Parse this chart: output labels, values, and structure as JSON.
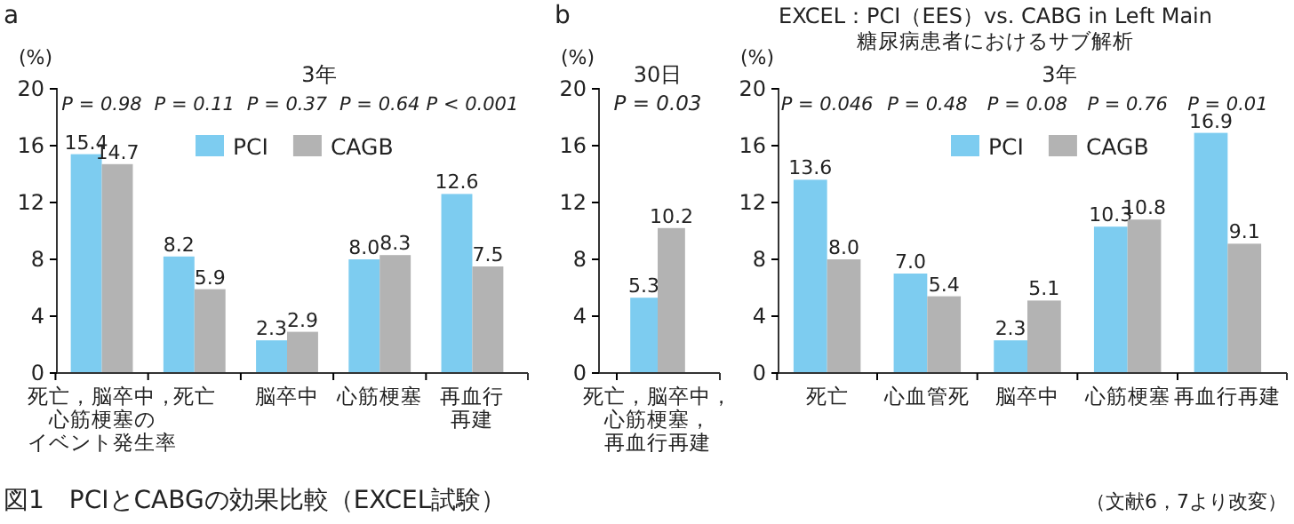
{
  "chart_data": [
    {
      "type": "bar",
      "title": "a",
      "ylabel": "(%)",
      "categories": [
        "死亡，脳卒中，心筋梗塞のイベント発生率",
        "死亡",
        "脳卒中",
        "心筋梗塞",
        "再血行再建"
      ],
      "series": [
        {
          "name": "PCI",
          "color": "#7dccf0",
          "values": [
            15.4,
            8.2,
            2.3,
            8.0,
            12.6
          ],
          "value_labels": [
            "15.4",
            "8.2",
            "2.3",
            "8.0",
            "12.6"
          ]
        },
        {
          "name": "CAGB",
          "color": "#b3b3b3",
          "values": [
            14.7,
            5.9,
            2.9,
            8.3,
            7.5
          ],
          "value_labels": [
            "14.7",
            "5.9",
            "2.9",
            "8.3",
            "7.5"
          ]
        }
      ],
      "ylim": [
        0,
        20
      ],
      "yticks": [
        0,
        4,
        8,
        12,
        16,
        20
      ],
      "legend": "top",
      "grid": false,
      "annotations": [
        "3年",
        "P = 0.98",
        "P = 0.11",
        "P = 0.37",
        "P = 0.64",
        "P < 0.001",
        "図1　PCIとCABGの効果比較（EXCEL試験）"
      ]
    },
    {
      "type": "bar",
      "title": "b",
      "ylabel": "(%)",
      "categories": [
        "死亡，脳卒中，心筋梗塞，再血行再建"
      ],
      "series": [
        {
          "color": "#7dccf0",
          "values": [
            5.3
          ],
          "value_labels": [
            "5.3"
          ]
        },
        {
          "color": "#b3b3b3",
          "values": [
            10.2
          ],
          "value_labels": [
            "10.2"
          ]
        }
      ],
      "ylim": [
        0,
        20
      ],
      "yticks": [
        0,
        4,
        8,
        12,
        16,
        20
      ],
      "legend": false,
      "grid": false,
      "annotations": [
        "30日",
        "P = 0.03"
      ]
    },
    {
      "type": "bar",
      "title": "EXCEL：PCI（EES）vs. CABG in Left Main",
      "subtitle": "糖尿病患者におけるサブ解析",
      "ylabel": "(%)",
      "categories": [
        "死亡",
        "心血管死",
        "脳卒中",
        "心筋梗塞",
        "再血行再建"
      ],
      "series": [
        {
          "name": "PCI",
          "color": "#7dccf0",
          "values": [
            13.6,
            7.0,
            2.3,
            10.3,
            16.9
          ],
          "value_labels": [
            "13.6",
            "7.0",
            "2.3",
            "10.3",
            "16.9"
          ]
        },
        {
          "name": "CAGB",
          "color": "#b3b3b3",
          "values": [
            8.0,
            5.4,
            5.1,
            10.8,
            9.1
          ],
          "value_labels": [
            "8.0",
            "5.4",
            "5.1",
            "10.8",
            "9.1"
          ]
        }
      ],
      "ylim": [
        0,
        20
      ],
      "yticks": [
        0,
        4,
        8,
        12,
        16,
        20
      ],
      "legend": "top",
      "grid": false,
      "annotations": [
        "3年",
        "P = 0.046",
        "P = 0.48",
        "P = 0.08",
        "P = 0.76",
        "P = 0.01",
        "（文献6，7より改変）"
      ]
    }
  ]
}
